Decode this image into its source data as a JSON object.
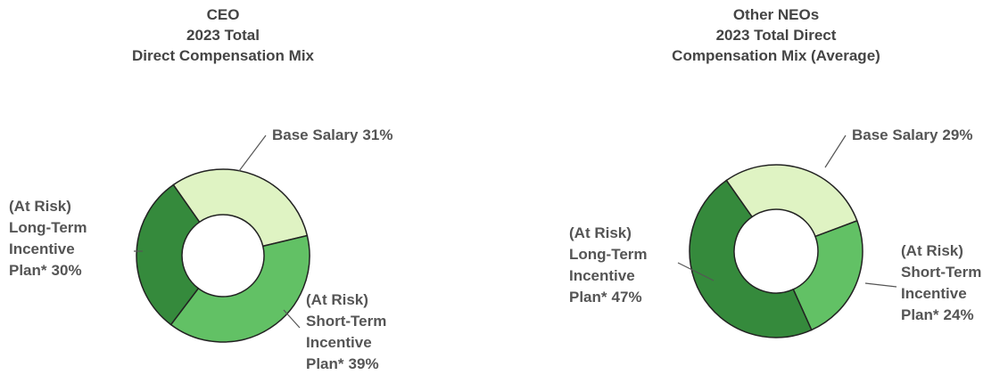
{
  "chart_data": [
    {
      "type": "donut",
      "title": [
        "CEO",
        "2023 Total",
        "Direct Compensation Mix"
      ],
      "categories": [
        [
          "Base Salary"
        ],
        [
          "(At Risk)",
          "Short-Term",
          "Incentive",
          "Plan*"
        ],
        [
          "(At Risk)",
          "Long-Term",
          "Incentive",
          "Plan*"
        ]
      ],
      "values": [
        31,
        39,
        30
      ],
      "value_labels": [
        "31%",
        "39%",
        "30%"
      ],
      "colors": [
        "#dff3c3",
        "#62c165",
        "#358a3c"
      ]
    },
    {
      "type": "donut",
      "title": [
        "Other NEOs",
        "2023 Total Direct",
        "Compensation Mix (Average)"
      ],
      "categories": [
        [
          "Base Salary"
        ],
        [
          "(At Risk)",
          "Short-Term",
          "Incentive",
          "Plan*"
        ],
        [
          "(At Risk)",
          "Long-Term",
          "Incentive",
          "Plan*"
        ]
      ],
      "values": [
        29,
        24,
        47
      ],
      "value_labels": [
        "29%",
        "24%",
        "47%"
      ],
      "colors": [
        "#dff3c3",
        "#62c165",
        "#358a3c"
      ]
    }
  ]
}
